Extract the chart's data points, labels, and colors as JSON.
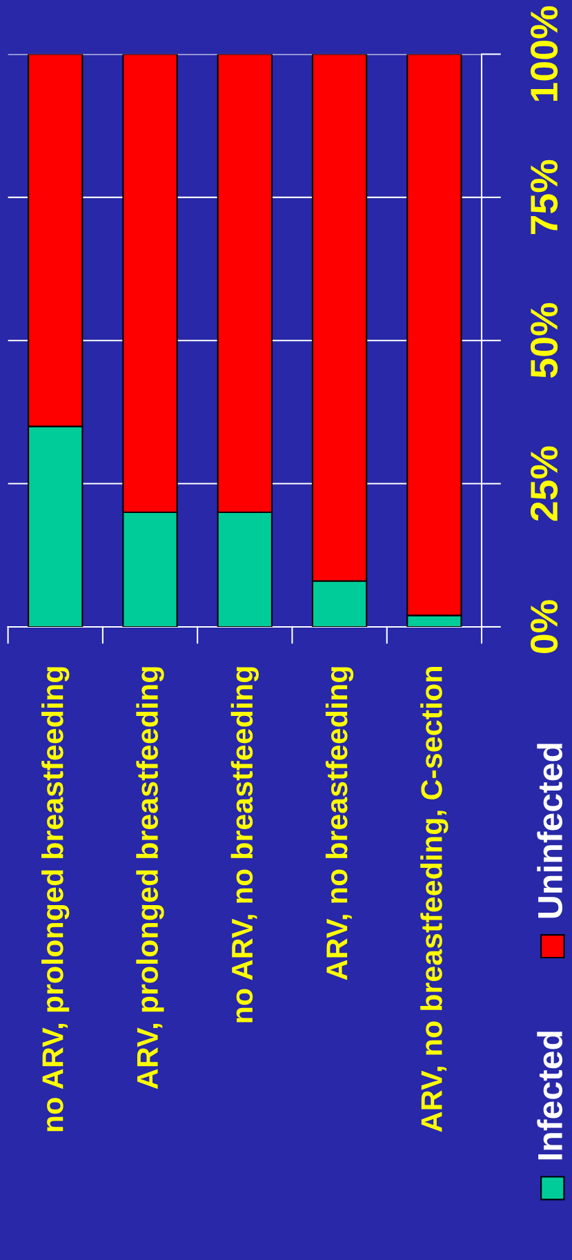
{
  "chart_data": {
    "type": "bar",
    "stacked": true,
    "categories": [
      "no ARV, prolonged breastfeeding",
      "ARV, prolonged breastfeeding",
      "no ARV, no breastfeeding",
      "ARV, no breastfeeding",
      "ARV, no breastfeeding, C-section"
    ],
    "series": [
      {
        "name": "Infected",
        "color": "#00cc99",
        "values": [
          35,
          20,
          20,
          8,
          2
        ]
      },
      {
        "name": "Uninfected",
        "color": "#ff0000",
        "values": [
          65,
          80,
          80,
          92,
          98
        ]
      }
    ],
    "ylim": [
      0,
      100
    ],
    "yticks": [
      {
        "value": 0,
        "label": "0%"
      },
      {
        "value": 25,
        "label": "25%"
      },
      {
        "value": 50,
        "label": "50%"
      },
      {
        "value": 75,
        "label": "75%"
      },
      {
        "value": 100,
        "label": "100%"
      }
    ],
    "grid": "y",
    "legend": "bottom"
  }
}
